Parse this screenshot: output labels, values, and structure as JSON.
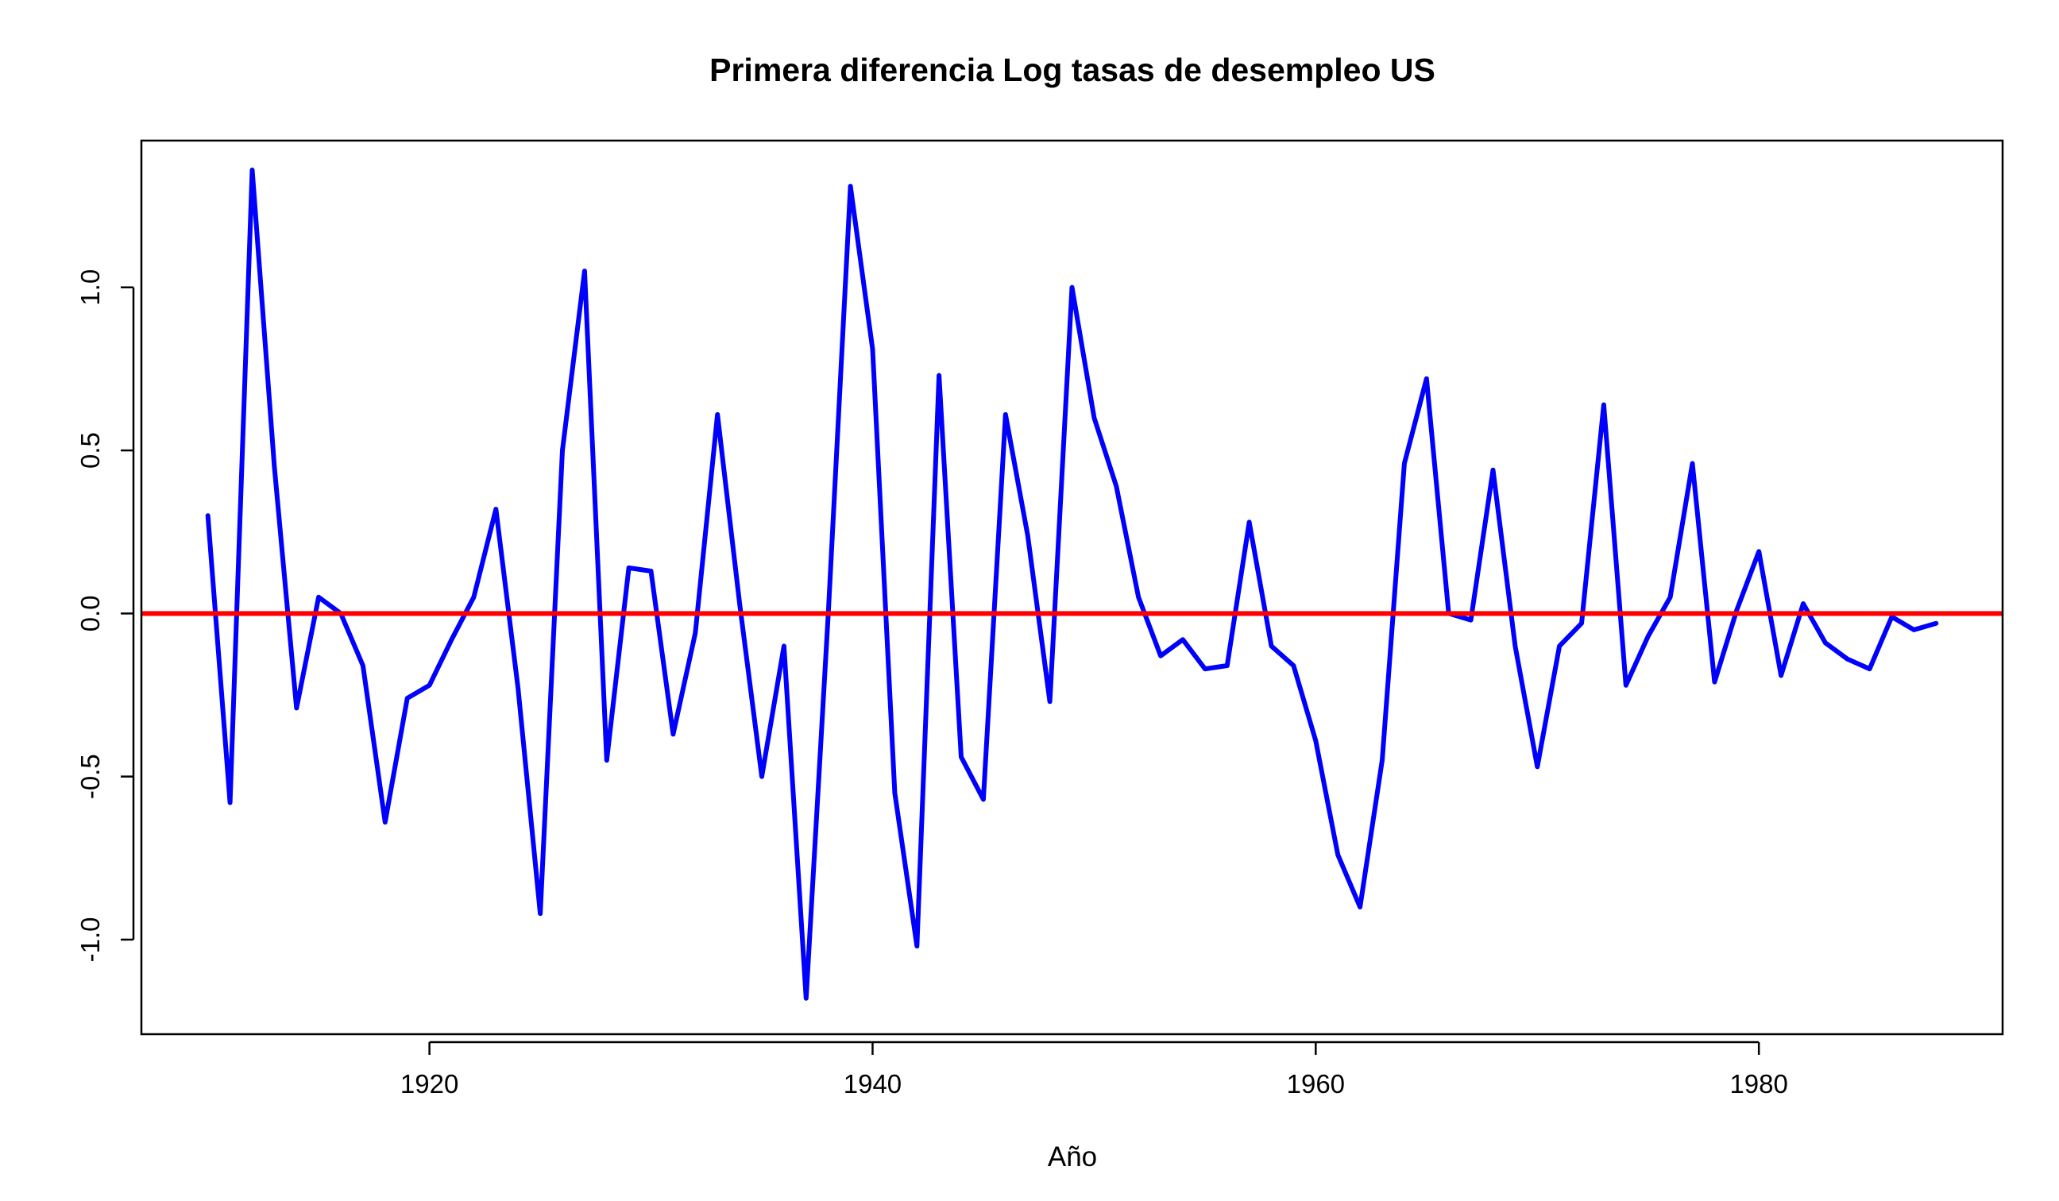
{
  "chart_data": {
    "type": "line",
    "title": "Primera diferencia Log tasas de desempleo US",
    "xlabel": "Año",
    "ylabel": "",
    "xlim": [
      1907,
      1991
    ],
    "ylim": [
      -1.29,
      1.45
    ],
    "x_ticks": [
      1920,
      1940,
      1960,
      1980
    ],
    "x_tick_labels": [
      "1920",
      "1940",
      "1960",
      "1980"
    ],
    "y_ticks": [
      -1.0,
      -0.5,
      0.0,
      0.5,
      1.0
    ],
    "y_tick_labels": [
      "-1.0",
      "-0.5",
      "0.0",
      "0.5",
      "1.0"
    ],
    "grid": false,
    "series": [
      {
        "color": "#0000ff",
        "x": [
          1910,
          1911,
          1912,
          1913,
          1914,
          1915,
          1916,
          1917,
          1918,
          1919,
          1920,
          1921,
          1922,
          1923,
          1924,
          1925,
          1926,
          1927,
          1928,
          1929,
          1930,
          1931,
          1932,
          1933,
          1934,
          1935,
          1936,
          1937,
          1938,
          1939,
          1940,
          1941,
          1942,
          1943,
          1944,
          1945,
          1946,
          1947,
          1948,
          1949,
          1950,
          1951,
          1952,
          1953,
          1954,
          1955,
          1956,
          1957,
          1958,
          1959,
          1960,
          1961,
          1962,
          1963,
          1964,
          1965,
          1966,
          1967,
          1968,
          1969,
          1970,
          1971,
          1972,
          1973,
          1974,
          1975,
          1976,
          1977,
          1978,
          1979,
          1980,
          1981,
          1982,
          1983,
          1984,
          1985,
          1986,
          1987,
          1988
        ],
        "y": [
          0.3,
          -0.58,
          1.36,
          0.45,
          -0.29,
          0.05,
          0.0,
          -0.16,
          -0.64,
          -0.26,
          -0.22,
          -0.08,
          0.05,
          0.32,
          -0.23,
          -0.92,
          0.5,
          1.05,
          -0.45,
          0.14,
          0.13,
          -0.37,
          -0.06,
          0.61,
          0.03,
          -0.5,
          -0.1,
          -1.18,
          0.0,
          1.31,
          0.81,
          -0.55,
          -1.02,
          0.73,
          -0.44,
          -0.57,
          0.61,
          0.24,
          -0.27,
          1.0,
          0.6,
          0.39,
          0.05,
          -0.13,
          -0.08,
          -0.17,
          -0.16,
          0.28,
          -0.1,
          -0.16,
          -0.39,
          -0.74,
          -0.9,
          -0.45,
          0.46,
          0.72,
          0.0,
          -0.02,
          0.44,
          -0.1,
          -0.47,
          -0.1,
          -0.03,
          0.64,
          -0.22,
          -0.07,
          0.05,
          0.46,
          -0.21,
          0.01,
          0.19,
          -0.19,
          0.03,
          -0.09,
          -0.14,
          -0.17,
          -0.01,
          -0.05,
          -0.03
        ]
      }
    ],
    "reference_line": {
      "y": 0,
      "color": "#ff0000"
    }
  }
}
